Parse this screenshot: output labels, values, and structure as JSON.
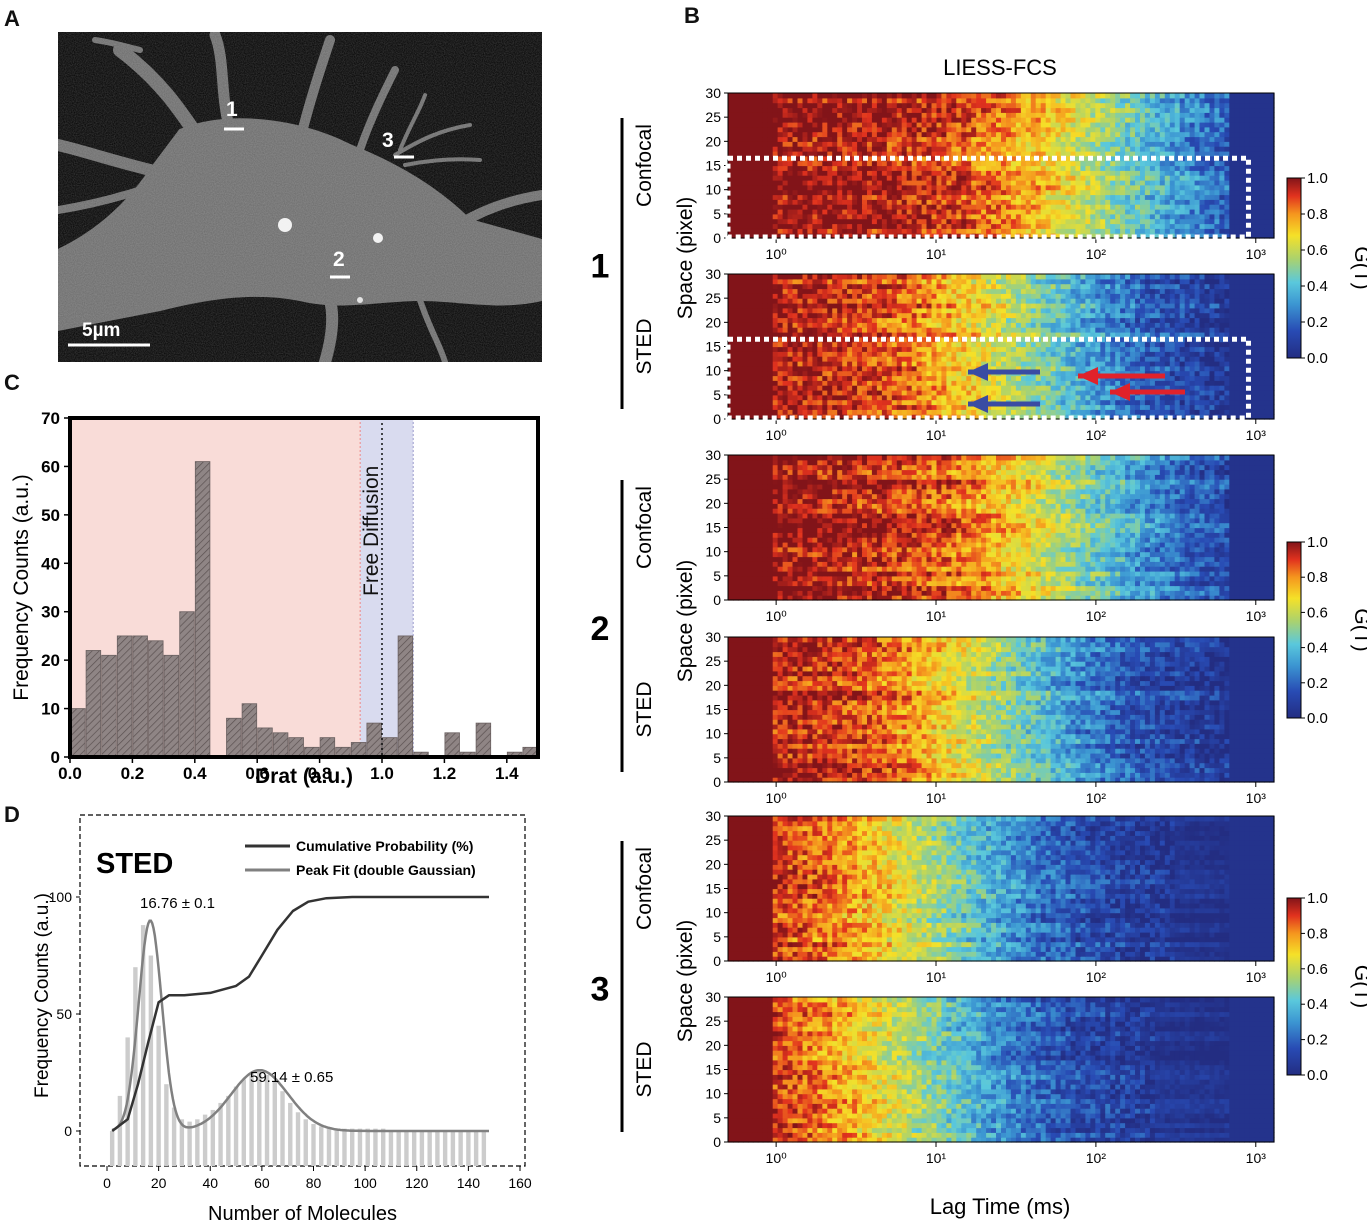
{
  "panels": {
    "a": {
      "letter": "A"
    },
    "b": {
      "letter": "B"
    },
    "c": {
      "letter": "C"
    },
    "d": {
      "letter": "D"
    }
  },
  "micrograph": {
    "scale_bar_label": "5µm",
    "roi_labels": [
      "1",
      "2",
      "3"
    ]
  },
  "chart_data": [
    {
      "id": "C",
      "type": "bar",
      "xlabel": "Drat (a.u.)",
      "ylabel": "Frequency Counts (a.u.)",
      "xlim": [
        0.0,
        1.5
      ],
      "ylim": [
        0,
        70
      ],
      "xticks": [
        "0.0",
        "0.2",
        "0.4",
        "0.6",
        "0.8",
        "1.0",
        "1.2",
        "1.4"
      ],
      "yticks": [
        "0",
        "10",
        "20",
        "30",
        "40",
        "50",
        "60",
        "70"
      ],
      "bin_width": 0.05,
      "x": [
        0.0,
        0.05,
        0.1,
        0.15,
        0.2,
        0.25,
        0.3,
        0.35,
        0.4,
        0.45,
        0.5,
        0.55,
        0.6,
        0.65,
        0.7,
        0.75,
        0.8,
        0.85,
        0.9,
        0.95,
        1.0,
        1.05,
        1.1,
        1.15,
        1.2,
        1.25,
        1.3,
        1.35,
        1.4,
        1.45
      ],
      "values": [
        10,
        22,
        21,
        25,
        25,
        24,
        21,
        30,
        61,
        0,
        8,
        11,
        6,
        5,
        4,
        2,
        4,
        2,
        3,
        7,
        4,
        25,
        1,
        0,
        5,
        1,
        7,
        0,
        1,
        2
      ],
      "annotation": "Free Diffusion",
      "annotation_x": 1.0,
      "shaded_regions": [
        {
          "from": 0.0,
          "to": 0.93,
          "color": "#f9dcd8"
        },
        {
          "from": 0.93,
          "to": 1.1,
          "color": "#d9dbef"
        }
      ],
      "bar_color": "#8f8585"
    },
    {
      "id": "D",
      "type": "bar",
      "title": "STED",
      "xlabel": "Number of Molecules",
      "ylabel": "Frequency Counts (a.u.)",
      "xlim": [
        0,
        160
      ],
      "ylim": [
        -30,
        130
      ],
      "xticks": [
        "0",
        "20",
        "40",
        "60",
        "80",
        "100",
        "120",
        "140",
        "160"
      ],
      "yticks": [
        "0",
        "50",
        "100"
      ],
      "legend": [
        "Cumulative Probability (%)",
        "Peak Fit (double Gaussian)"
      ],
      "legend_position": "top-right",
      "annotations": [
        "16.76 ± 0.1",
        "59.14 ± 0.65"
      ],
      "peak1": {
        "mean": 16.76,
        "amp": 90,
        "sd": 4.5
      },
      "peak2": {
        "mean": 59.14,
        "amp": 26,
        "sd": 11
      },
      "bar_x": [
        2,
        5,
        8,
        11,
        14,
        17,
        20,
        23,
        26,
        29,
        32,
        35,
        38,
        41,
        44,
        47,
        50,
        53,
        56,
        59,
        62,
        65,
        68,
        71,
        74,
        77,
        80,
        83,
        86,
        89,
        92,
        95,
        98,
        101,
        104,
        107,
        110,
        113,
        116,
        119,
        122,
        125,
        128,
        131,
        134,
        137,
        140,
        143,
        146
      ],
      "bar_values": [
        0,
        15,
        40,
        70,
        88,
        75,
        45,
        20,
        10,
        5,
        4,
        5,
        7,
        9,
        12,
        15,
        19,
        22,
        25,
        26,
        24,
        21,
        17,
        12,
        8,
        5,
        3,
        2,
        1,
        1,
        1,
        1,
        1,
        1,
        1,
        1,
        0,
        0,
        0,
        0,
        0,
        0,
        0,
        0,
        0,
        0,
        0,
        0,
        0
      ],
      "cumulative_x": [
        2,
        8,
        12,
        16,
        20,
        24,
        30,
        40,
        50,
        55,
        60,
        66,
        72,
        78,
        85,
        95,
        110,
        148
      ],
      "cumulative_y": [
        0,
        5,
        20,
        38,
        55,
        58,
        58,
        59,
        62,
        66,
        75,
        86,
        94,
        98,
        99.5,
        100,
        100,
        100
      ],
      "bar_color": "#cccccc",
      "cumulative_color": "#333333",
      "fit_color": "#808080"
    },
    {
      "id": "B",
      "type": "heatmap",
      "title": "LIESS-FCS",
      "xlabel": "Lag Time (ms)",
      "ylabel": "Space (pixel)",
      "x_scale": "log",
      "xlim": [
        0.5,
        1300
      ],
      "ylim": [
        0,
        30
      ],
      "xticks": [
        "10⁰",
        "10¹",
        "10²",
        "10³"
      ],
      "yticks": [
        "0",
        "5",
        "10",
        "15",
        "20",
        "25",
        "30"
      ],
      "colorbar_label": "G(T)",
      "colorbar_ticks": [
        "0.0",
        "0.2",
        "0.4",
        "0.6",
        "0.8",
        "1.0"
      ],
      "colorbar_range": [
        0.0,
        1.0
      ],
      "groups": [
        {
          "label": "1",
          "rows": [
            {
              "label": "Confocal",
              "decay_ms": 140,
              "box": true
            },
            {
              "label": "STED",
              "decay_ms": 45,
              "box": true,
              "arrows": [
                "blue",
                "blue",
                "red",
                "red"
              ]
            }
          ]
        },
        {
          "label": "2",
          "rows": [
            {
              "label": "Confocal",
              "decay_ms": 85
            },
            {
              "label": "STED",
              "decay_ms": 30
            }
          ]
        },
        {
          "label": "3",
          "rows": [
            {
              "label": "Confocal",
              "decay_ms": 12
            },
            {
              "label": "STED",
              "decay_ms": 9
            }
          ]
        }
      ]
    }
  ]
}
